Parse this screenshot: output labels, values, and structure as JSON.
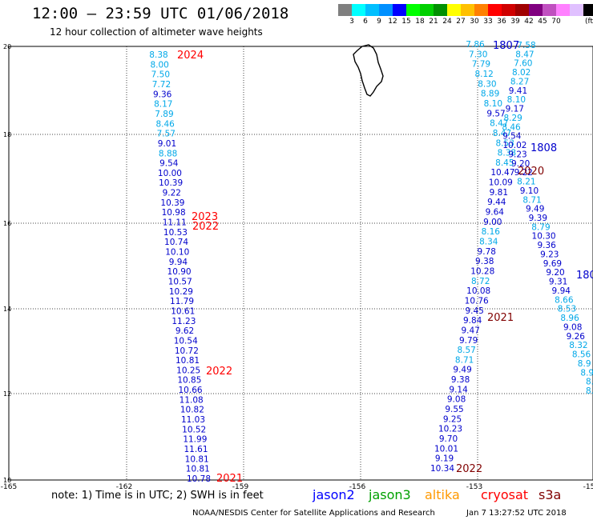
{
  "header": {
    "title": "12:00 – 23:59 UTC 01/06/2018",
    "subtitle": "12 hour collection of altimeter wave heights"
  },
  "colorbar": {
    "colors": [
      "#7f7f7f",
      "#00ffff",
      "#00bfff",
      "#0090ff",
      "#0000ff",
      "#00ff00",
      "#00d000",
      "#009000",
      "#ffff00",
      "#ffc000",
      "#ff8000",
      "#ff0000",
      "#d00000",
      "#a00000",
      "#800080",
      "#c050c0",
      "#ff80ff",
      "#e0c0ff",
      "#000000"
    ],
    "labels": [
      "3",
      "6",
      "9",
      "12",
      "15",
      "18",
      "21",
      "24",
      "27",
      "30",
      "33",
      "36",
      "39",
      "42",
      "45",
      "70"
    ],
    "unit": "(ft)"
  },
  "axes": {
    "lon_labels": [
      "-165",
      "-162",
      "-159",
      "-156",
      "-153",
      "-15"
    ],
    "lat_labels": [
      "20",
      "18",
      "16",
      "14",
      "12",
      "10"
    ]
  },
  "tracks": [
    {
      "id": "track-a",
      "labels": [
        {
          "text": "2024",
          "color": "#ff0000"
        },
        {
          "text": "2023",
          "color": "#ff0000"
        },
        {
          "text": "2022",
          "color": "#ff0000"
        },
        {
          "text": "2022",
          "color": "#ff0000"
        },
        {
          "text": "2021",
          "color": "#ff0000"
        }
      ],
      "values": [
        "8.38",
        "8.00",
        "7.50",
        "7.72",
        "9.36",
        "8.17",
        "7.89",
        "8.46",
        "7.57",
        "9.01",
        "8.88",
        "9.54",
        "10.00",
        "10.39",
        "9.22",
        "10.39",
        "10.98",
        "11.11",
        "10.53",
        "10.74",
        "10.10",
        "9.94",
        "10.90",
        "10.57",
        "10.29",
        "11.79",
        "10.61",
        "11.23",
        "9.62",
        "10.54",
        "10.72",
        "10.81",
        "10.25",
        "10.85",
        "10.66",
        "11.08",
        "10.82",
        "11.03",
        "10.52",
        "11.99",
        "11.61",
        "10.81",
        "10.81",
        "10.78"
      ]
    },
    {
      "id": "track-b",
      "labels": [
        {
          "text": "2021",
          "color": "#800000"
        },
        {
          "text": "2022",
          "color": "#800000"
        }
      ],
      "values": [
        "7.86",
        "7.30",
        "7.79",
        "8.12",
        "8.30",
        "8.89",
        "8.10",
        "9.57",
        "8.47",
        "8.47",
        "8.53",
        "8.38",
        "8.45",
        "10.47",
        "10.09",
        "9.81",
        "9.44",
        "9.64",
        "9.00",
        "8.16",
        "8.34",
        "9.78",
        "9.38",
        "10.28",
        "8.72",
        "10.08",
        "10.76",
        "9.45",
        "9.84",
        "9.47",
        "9.79",
        "8.57",
        "8.71",
        "9.49",
        "9.38",
        "9.14",
        "9.08",
        "9.55",
        "9.25",
        "10.23",
        "9.70",
        "10.01",
        "9.19",
        "10.34"
      ]
    },
    {
      "id": "track-c",
      "labels": [
        {
          "text": "1807",
          "color": "#0000cc"
        },
        {
          "text": "1808",
          "color": "#0000cc"
        },
        {
          "text": "2020",
          "color": "#800000"
        },
        {
          "text": "180",
          "color": "#0000cc"
        }
      ],
      "values": [
        "7.58",
        "8.47",
        "7.60",
        "8.02",
        "8.27",
        "9.41",
        "8.10",
        "9.17",
        "8.29",
        "8.46",
        "9.54",
        "10.02",
        "9.23",
        "9.20",
        "9.22",
        "8.21",
        "9.10",
        "8.71",
        "9.49",
        "9.39",
        "8.79",
        "10.30",
        "9.36",
        "9.23",
        "9.69",
        "9.20",
        "9.31",
        "9.94",
        "8.66",
        "8.53",
        "8.96",
        "9.08",
        "9.26",
        "8.32",
        "8.56",
        "8.9",
        "8.9",
        "8.",
        "8."
      ]
    }
  ],
  "footer": {
    "note": "note:  1) Time is in UTC;  2) SWH is in feet",
    "satellites": [
      {
        "name": "jason2",
        "color": "#0000ff"
      },
      {
        "name": "jason3",
        "color": "#00a000"
      },
      {
        "name": "altika",
        "color": "#ff9900"
      },
      {
        "name": "cryosat",
        "color": "#ff0000"
      },
      {
        "name": "s3a",
        "color": "#800000"
      }
    ],
    "credit": "NOAA/NESDIS Center for Satellite Applications and Research",
    "timestamp": "Jan  7 13:27:52 UTC 2018"
  }
}
